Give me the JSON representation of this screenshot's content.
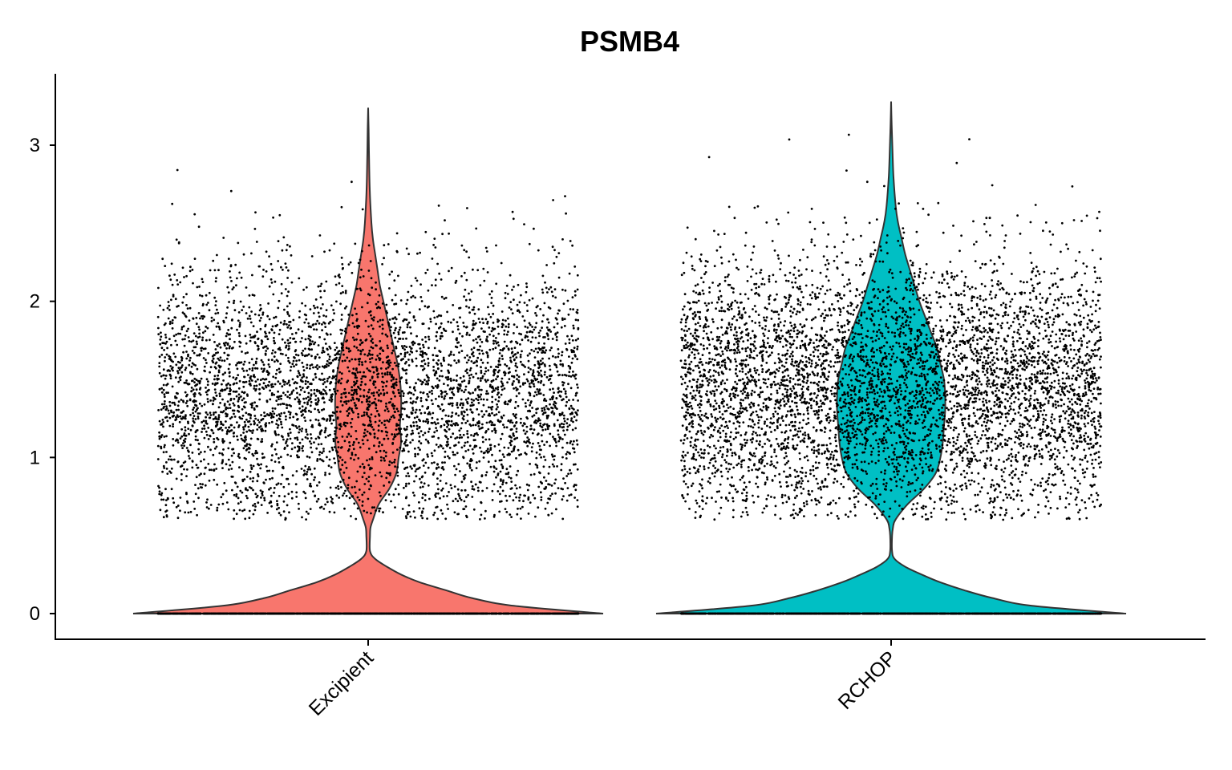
{
  "chart_data": {
    "type": "violin",
    "title": "PSMB4",
    "xlabel": "",
    "ylabel": "",
    "categories": [
      "Excipient",
      "RCHOP"
    ],
    "ylim": [
      -0.16,
      3.45
    ],
    "yticks": [
      0,
      1,
      2,
      3
    ],
    "grid": false,
    "legend": "none",
    "series": [
      {
        "category": "Excipient",
        "color": "#F8766D",
        "max": 3.24,
        "zero_fraction": 0.62,
        "nonzero_median": 1.4,
        "density": [
          [
            0.0,
            1.0
          ],
          [
            0.05,
            0.62
          ],
          [
            0.1,
            0.44
          ],
          [
            0.15,
            0.33
          ],
          [
            0.2,
            0.22
          ],
          [
            0.25,
            0.14
          ],
          [
            0.3,
            0.08
          ],
          [
            0.35,
            0.03
          ],
          [
            0.4,
            0.008
          ],
          [
            0.5,
            0.008
          ],
          [
            0.55,
            0.01
          ],
          [
            0.6,
            0.02
          ],
          [
            0.7,
            0.045
          ],
          [
            0.8,
            0.09
          ],
          [
            0.9,
            0.12
          ],
          [
            1.0,
            0.13
          ],
          [
            1.1,
            0.14
          ],
          [
            1.2,
            0.135
          ],
          [
            1.3,
            0.14
          ],
          [
            1.4,
            0.14
          ],
          [
            1.5,
            0.135
          ],
          [
            1.6,
            0.125
          ],
          [
            1.7,
            0.11
          ],
          [
            1.8,
            0.095
          ],
          [
            1.9,
            0.08
          ],
          [
            2.0,
            0.065
          ],
          [
            2.1,
            0.05
          ],
          [
            2.2,
            0.04
          ],
          [
            2.3,
            0.03
          ],
          [
            2.4,
            0.02
          ],
          [
            2.5,
            0.014
          ],
          [
            2.7,
            0.007
          ],
          [
            2.9,
            0.004
          ],
          [
            3.1,
            0.002
          ],
          [
            3.24,
            0
          ]
        ]
      },
      {
        "category": "RCHOP",
        "color": "#00BFC4",
        "max": 3.28,
        "zero_fraction": 0.55,
        "nonzero_median": 1.45,
        "density": [
          [
            0.0,
            1.0
          ],
          [
            0.05,
            0.6
          ],
          [
            0.1,
            0.43
          ],
          [
            0.15,
            0.31
          ],
          [
            0.2,
            0.21
          ],
          [
            0.25,
            0.13
          ],
          [
            0.3,
            0.06
          ],
          [
            0.35,
            0.015
          ],
          [
            0.4,
            0.004
          ],
          [
            0.5,
            0.004
          ],
          [
            0.55,
            0.008
          ],
          [
            0.6,
            0.018
          ],
          [
            0.7,
            0.07
          ],
          [
            0.8,
            0.14
          ],
          [
            0.9,
            0.19
          ],
          [
            1.0,
            0.21
          ],
          [
            1.1,
            0.22
          ],
          [
            1.2,
            0.225
          ],
          [
            1.3,
            0.23
          ],
          [
            1.4,
            0.23
          ],
          [
            1.5,
            0.225
          ],
          [
            1.6,
            0.21
          ],
          [
            1.7,
            0.195
          ],
          [
            1.8,
            0.17
          ],
          [
            1.9,
            0.145
          ],
          [
            2.0,
            0.12
          ],
          [
            2.1,
            0.1
          ],
          [
            2.2,
            0.08
          ],
          [
            2.3,
            0.06
          ],
          [
            2.4,
            0.045
          ],
          [
            2.5,
            0.03
          ],
          [
            2.6,
            0.02
          ],
          [
            2.8,
            0.01
          ],
          [
            3.0,
            0.005
          ],
          [
            3.15,
            0.002
          ],
          [
            3.28,
            0
          ]
        ]
      }
    ]
  }
}
